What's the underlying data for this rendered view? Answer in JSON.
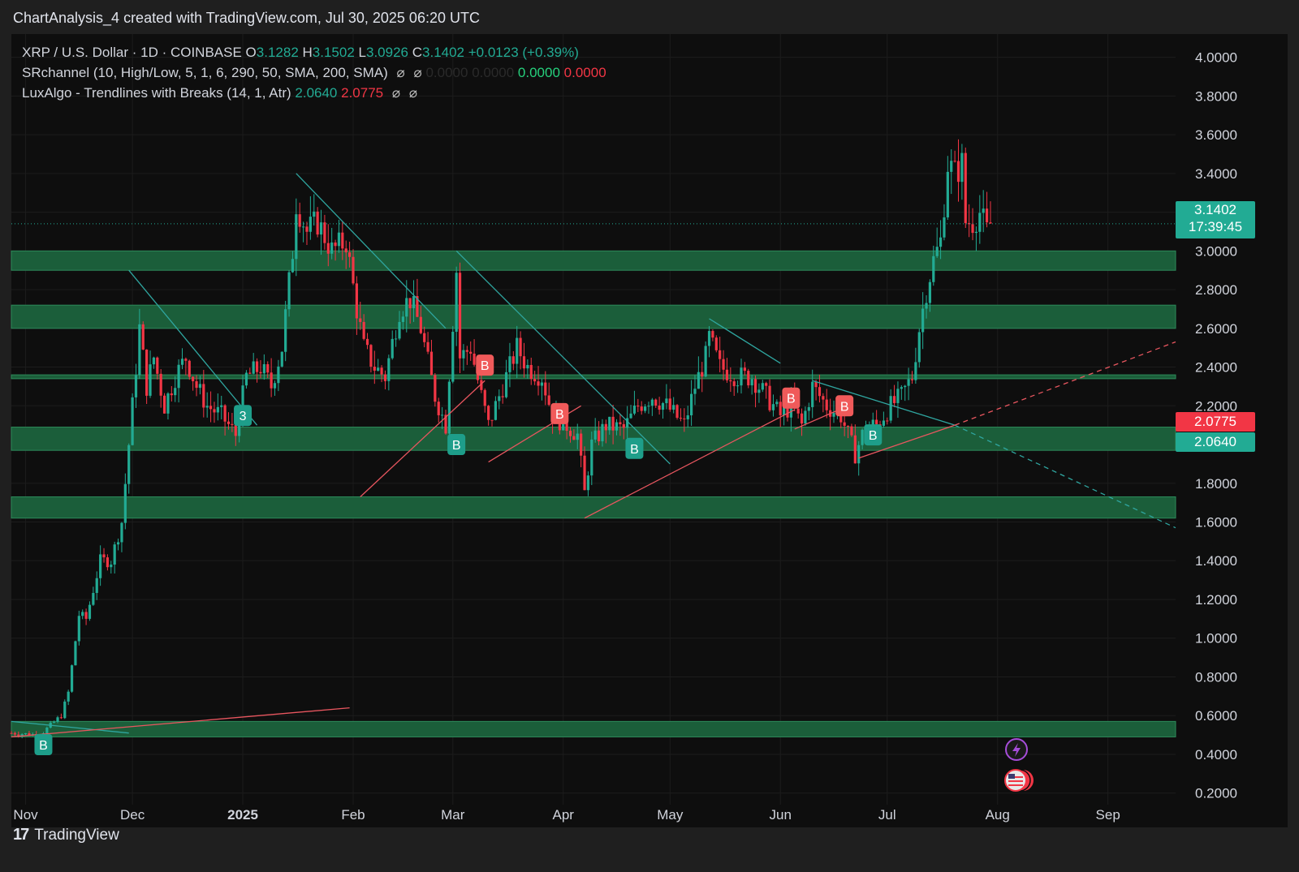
{
  "header": {
    "text": "ChartAnalysis_4 created with TradingView.com, Jul 30, 2025 06:20 UTC"
  },
  "legend": {
    "symbol": "XRP / U.S. Dollar · 1D · COINBASE",
    "o_label": "O",
    "o_value": "3.1282",
    "h_label": "H",
    "h_value": "3.1502",
    "l_label": "L",
    "l_value": "3.0926",
    "c_label": "C",
    "c_value": "3.1402",
    "change": "+0.0123 (+0.39%)",
    "srchannel": "SRchannel (10, High/Low, 5, 1, 6, 290, 50, SMA, 200, SMA)",
    "sr_v1": "0.0000",
    "sr_v2": "0.0000",
    "sr_v3": "0.0000",
    "sr_v4": "0.0000",
    "luxalgo": "LuxAlgo - Trendlines with Breaks (14, 1, Atr)",
    "lux_v1": "2.0640",
    "lux_v2": "2.0775",
    "icon": "⌀"
  },
  "price_tags": {
    "current": "3.1402",
    "countdown": "17:39:45",
    "red": "2.0775",
    "teal": "2.0640"
  },
  "colors": {
    "up": "#22ab94",
    "down": "#f23645",
    "zone": "#1b5e3a",
    "trend_teal": "#2fa6a0",
    "trend_red": "#e8565f",
    "background": "#0e0e0e"
  },
  "footer": {
    "brand": "TradingView",
    "logo": "17"
  },
  "chart_data": {
    "type": "candlestick",
    "symbol": "XRP / U.S. Dollar",
    "interval": "1D",
    "exchange": "COINBASE",
    "ylim": [
      0.14,
      4.12
    ],
    "y_ticks": [
      "4.0000",
      "3.8000",
      "3.6000",
      "3.4000",
      "3.2000",
      "3.0000",
      "2.8000",
      "2.6000",
      "2.4000",
      "2.2000",
      "2.0000",
      "1.8000",
      "1.6000",
      "1.4000",
      "1.2000",
      "1.0000",
      "0.8000",
      "0.6000",
      "0.4000",
      "0.2000"
    ],
    "x_ticks": [
      {
        "label": "Nov",
        "date": "2024-11-01"
      },
      {
        "label": "Dec",
        "date": "2024-12-01"
      },
      {
        "label": "2025",
        "date": "2025-01-01",
        "bold": true
      },
      {
        "label": "Feb",
        "date": "2025-02-01"
      },
      {
        "label": "Mar",
        "date": "2025-03-01"
      },
      {
        "label": "Apr",
        "date": "2025-04-01"
      },
      {
        "label": "May",
        "date": "2025-05-01"
      },
      {
        "label": "Jun",
        "date": "2025-06-01"
      },
      {
        "label": "Jul",
        "date": "2025-07-01"
      },
      {
        "label": "Aug",
        "date": "2025-08-01"
      },
      {
        "label": "Sep",
        "date": "2025-09-01"
      }
    ],
    "x_range": [
      "2024-10-28",
      "2025-09-20"
    ],
    "last_close": 3.1402,
    "close_path": [
      [
        "2024-10-28",
        0.51
      ],
      [
        "2024-11-05",
        0.5
      ],
      [
        "2024-11-08",
        0.55
      ],
      [
        "2024-11-11",
        0.6
      ],
      [
        "2024-11-13",
        0.72
      ],
      [
        "2024-11-16",
        1.12
      ],
      [
        "2024-11-18",
        1.1
      ],
      [
        "2024-11-22",
        1.4
      ],
      [
        "2024-11-25",
        1.4
      ],
      [
        "2024-11-28",
        1.6
      ],
      [
        "2024-12-01",
        2.2
      ],
      [
        "2024-12-03",
        2.6
      ],
      [
        "2024-12-05",
        2.3
      ],
      [
        "2024-12-07",
        2.45
      ],
      [
        "2024-12-10",
        2.2
      ],
      [
        "2024-12-13",
        2.35
      ],
      [
        "2024-12-16",
        2.45
      ],
      [
        "2024-12-19",
        2.3
      ],
      [
        "2024-12-22",
        2.2
      ],
      [
        "2024-12-26",
        2.15
      ],
      [
        "2024-12-30",
        2.05
      ],
      [
        "2025-01-02",
        2.35
      ],
      [
        "2025-01-06",
        2.4
      ],
      [
        "2025-01-09",
        2.3
      ],
      [
        "2025-01-12",
        2.5
      ],
      [
        "2025-01-15",
        3.0
      ],
      [
        "2025-01-16",
        3.25
      ],
      [
        "2025-01-19",
        3.1
      ],
      [
        "2025-01-22",
        3.15
      ],
      [
        "2025-01-26",
        3.0
      ],
      [
        "2025-01-30",
        3.05
      ],
      [
        "2025-02-02",
        2.7
      ],
      [
        "2025-02-04",
        2.5
      ],
      [
        "2025-02-07",
        2.4
      ],
      [
        "2025-02-10",
        2.35
      ],
      [
        "2025-02-14",
        2.7
      ],
      [
        "2025-02-17",
        2.75
      ],
      [
        "2025-02-20",
        2.6
      ],
      [
        "2025-02-24",
        2.25
      ],
      [
        "2025-02-27",
        2.1
      ],
      [
        "2025-03-02",
        2.9
      ],
      [
        "2025-03-03",
        2.45
      ],
      [
        "2025-03-06",
        2.5
      ],
      [
        "2025-03-09",
        2.25
      ],
      [
        "2025-03-11",
        2.1
      ],
      [
        "2025-03-15",
        2.3
      ],
      [
        "2025-03-19",
        2.5
      ],
      [
        "2025-03-22",
        2.4
      ],
      [
        "2025-03-26",
        2.35
      ],
      [
        "2025-03-29",
        2.15
      ],
      [
        "2025-04-02",
        2.1
      ],
      [
        "2025-04-05",
        2.05
      ],
      [
        "2025-04-07",
        1.75
      ],
      [
        "2025-04-09",
        2.0
      ],
      [
        "2025-04-13",
        2.1
      ],
      [
        "2025-04-18",
        2.08
      ],
      [
        "2025-04-22",
        2.2
      ],
      [
        "2025-04-26",
        2.25
      ],
      [
        "2025-04-30",
        2.2
      ],
      [
        "2025-05-05",
        2.1
      ],
      [
        "2025-05-08",
        2.3
      ],
      [
        "2025-05-11",
        2.45
      ],
      [
        "2025-05-12",
        2.55
      ],
      [
        "2025-05-15",
        2.4
      ],
      [
        "2025-05-20",
        2.35
      ],
      [
        "2025-05-24",
        2.35
      ],
      [
        "2025-05-28",
        2.25
      ],
      [
        "2025-06-01",
        2.15
      ],
      [
        "2025-06-04",
        2.2
      ],
      [
        "2025-06-07",
        2.1
      ],
      [
        "2025-06-10",
        2.3
      ],
      [
        "2025-06-14",
        2.2
      ],
      [
        "2025-06-18",
        2.15
      ],
      [
        "2025-06-22",
        1.95
      ],
      [
        "2025-06-25",
        2.1
      ],
      [
        "2025-06-28",
        2.1
      ],
      [
        "2025-07-02",
        2.2
      ],
      [
        "2025-07-05",
        2.25
      ],
      [
        "2025-07-08",
        2.35
      ],
      [
        "2025-07-10",
        2.6
      ],
      [
        "2025-07-12",
        2.8
      ],
      [
        "2025-07-14",
        2.95
      ],
      [
        "2025-07-16",
        3.05
      ],
      [
        "2025-07-18",
        3.45
      ],
      [
        "2025-07-20",
        3.4
      ],
      [
        "2025-07-22",
        3.45
      ],
      [
        "2025-07-23",
        3.15
      ],
      [
        "2025-07-25",
        3.15
      ],
      [
        "2025-07-27",
        3.2
      ],
      [
        "2025-07-29",
        3.1
      ],
      [
        "2025-07-30",
        3.1402
      ]
    ],
    "sr_zones": [
      {
        "low": 2.9,
        "high": 3.0
      },
      {
        "low": 2.6,
        "high": 2.72
      },
      {
        "low": 2.34,
        "high": 2.36
      },
      {
        "low": 1.97,
        "high": 2.09
      },
      {
        "low": 1.62,
        "high": 1.73
      },
      {
        "low": 0.49,
        "high": 0.57
      }
    ],
    "trendlines": [
      {
        "color": "teal",
        "from": [
          "2024-11-30",
          2.9
        ],
        "to": [
          "2025-01-05",
          2.1
        ]
      },
      {
        "color": "teal",
        "from": [
          "2025-01-16",
          3.4
        ],
        "to": [
          "2025-02-27",
          2.6
        ]
      },
      {
        "color": "teal",
        "from": [
          "2025-03-02",
          3.0
        ],
        "to": [
          "2025-05-01",
          1.9
        ]
      },
      {
        "color": "teal",
        "from": [
          "2025-05-12",
          2.65
        ],
        "to": [
          "2025-06-01",
          2.42
        ]
      },
      {
        "color": "teal",
        "from": [
          "2025-06-10",
          2.33
        ],
        "to": [
          "2025-07-20",
          2.1
        ]
      },
      {
        "color": "teal",
        "dashed": true,
        "from": [
          "2025-07-20",
          2.1
        ],
        "to": [
          "2025-09-20",
          1.57
        ]
      },
      {
        "color": "teal",
        "from": [
          "2024-10-28",
          0.57
        ],
        "to": [
          "2024-11-30",
          0.51
        ]
      },
      {
        "color": "red",
        "from": [
          "2025-02-03",
          1.73
        ],
        "to": [
          "2025-03-10",
          2.33
        ]
      },
      {
        "color": "red",
        "from": [
          "2025-03-11",
          1.91
        ],
        "to": [
          "2025-04-06",
          2.2
        ]
      },
      {
        "color": "red",
        "from": [
          "2025-04-07",
          1.62
        ],
        "to": [
          "2025-06-05",
          2.18
        ]
      },
      {
        "color": "red",
        "from": [
          "2025-06-05",
          2.08
        ],
        "to": [
          "2025-06-20",
          2.2
        ]
      },
      {
        "color": "red",
        "from": [
          "2025-06-23",
          1.93
        ],
        "to": [
          "2025-07-20",
          2.1
        ]
      },
      {
        "color": "red",
        "dashed": true,
        "from": [
          "2025-07-20",
          2.1
        ],
        "to": [
          "2025-09-20",
          2.53
        ]
      },
      {
        "color": "red",
        "from": [
          "2024-10-28",
          0.49
        ],
        "to": [
          "2025-01-31",
          0.64
        ]
      }
    ],
    "break_labels": [
      {
        "text": "B",
        "color": "teal",
        "date": "2024-11-06",
        "price": 0.45
      },
      {
        "text": "3",
        "color": "teal",
        "date": "2025-01-01",
        "price": 2.15
      },
      {
        "text": "B",
        "color": "teal",
        "date": "2025-03-02",
        "price": 2.0
      },
      {
        "text": "B",
        "color": "red",
        "date": "2025-03-10",
        "price": 2.41
      },
      {
        "text": "B",
        "color": "red",
        "date": "2025-03-31",
        "price": 2.16
      },
      {
        "text": "B",
        "color": "teal",
        "date": "2025-04-21",
        "price": 1.98
      },
      {
        "text": "B",
        "color": "red",
        "date": "2025-06-04",
        "price": 2.24
      },
      {
        "text": "B",
        "color": "red",
        "date": "2025-06-19",
        "price": 2.2
      },
      {
        "text": "B",
        "color": "teal",
        "date": "2025-06-27",
        "price": 2.05
      }
    ]
  }
}
